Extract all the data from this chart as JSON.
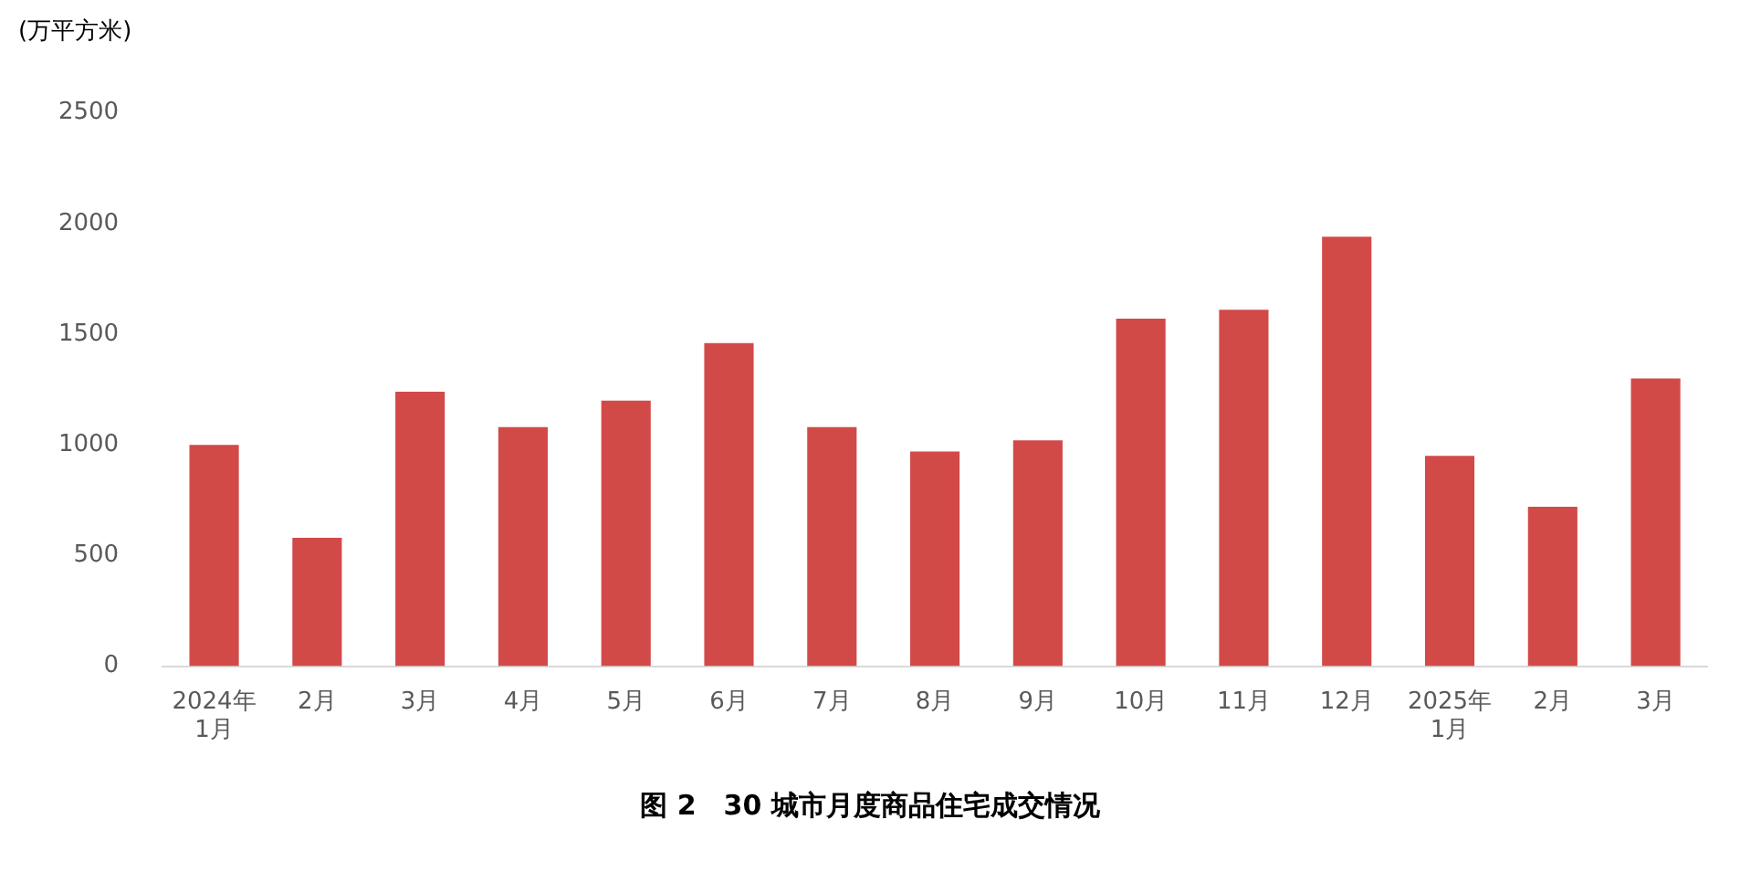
{
  "chart_data": {
    "type": "bar",
    "title": "图 2　30 城市月度商品住宅成交情况",
    "ylabel": "(万平方米)",
    "categories": [
      "2024年\n1月",
      "2月",
      "3月",
      "4月",
      "5月",
      "6月",
      "7月",
      "8月",
      "9月",
      "10月",
      "11月",
      "12月",
      "2025年\n1月",
      "2月",
      "3月"
    ],
    "series": [
      {
        "color": "#d24a48",
        "values": [
          1000,
          580,
          1240,
          1080,
          1200,
          1460,
          1080,
          970,
          1020,
          1570,
          1610,
          1940,
          950,
          720,
          1300
        ]
      }
    ],
    "ylim": [
      0,
      2500
    ],
    "yticks": [
      0,
      500,
      1000,
      1500,
      2000,
      2500
    ],
    "grid": false,
    "legend": false
  }
}
